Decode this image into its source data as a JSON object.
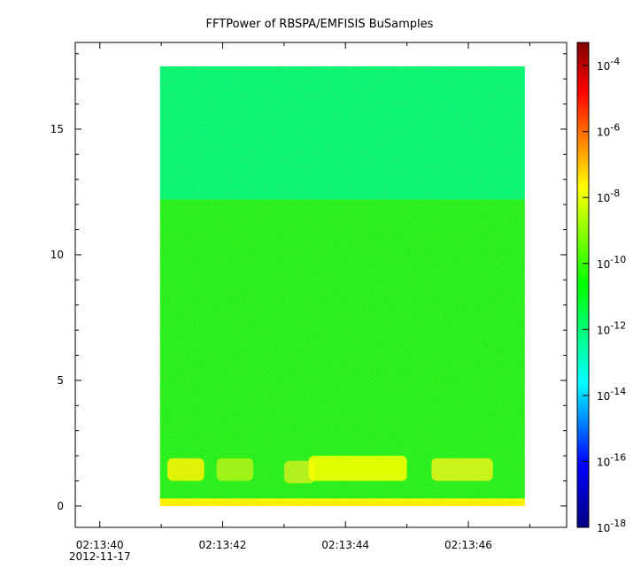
{
  "chart_data": {
    "type": "heatmap",
    "title": "FFTPower of RBSPA/EMFISIS  BuSamples",
    "xlabel": "",
    "ylabel": "",
    "x": {
      "tick_labels": [
        "02:13:40",
        "02:13:42",
        "02:13:44",
        "02:13:46"
      ],
      "tick_values_s": [
        0,
        2,
        4,
        6
      ],
      "date_label": "2012-11-17",
      "range_s": [
        -0.4,
        7.6
      ],
      "data_span_s": [
        0.98,
        6.92
      ]
    },
    "y": {
      "tick_labels": [
        "0",
        "5",
        "10",
        "15"
      ],
      "tick_values": [
        0,
        5,
        10,
        15
      ],
      "range": [
        -0.85,
        18.45
      ],
      "data_span": [
        0,
        17.5
      ]
    },
    "colorbar": {
      "scale": "log",
      "colormap": "rainbow",
      "range_exponent": [
        -18,
        -3.3
      ],
      "tick_labels": [
        "-18",
        "-16",
        "-14",
        "-12",
        "-10",
        "-8",
        "-6",
        "-4"
      ],
      "tick_exponents": [
        -18,
        -16,
        -14,
        -12,
        -10,
        -8,
        -6,
        -4
      ],
      "tick_base": "10",
      "colors": [
        "#000080",
        "#0000ff",
        "#00ffff",
        "#00ff00",
        "#ffff00",
        "#ff0000",
        "#800000"
      ]
    },
    "spectrum": {
      "upper_band": {
        "y_from": 12.2,
        "y_to": 17.5,
        "log_power": -12.4,
        "color": "#00f37a"
      },
      "middle_band": {
        "y_from": 0.2,
        "y_to": 12.2,
        "log_power": -10.6,
        "color": "#20ee20"
      },
      "baseline": {
        "y_from": 0,
        "y_to": 0.3,
        "log_power": -8.6,
        "color": "#ffee00"
      },
      "bursts": [
        {
          "t_from": 1.1,
          "t_to": 1.7,
          "y_from": 1.0,
          "y_to": 1.9,
          "color": "#fff200"
        },
        {
          "t_from": 1.9,
          "t_to": 2.5,
          "y_from": 1.0,
          "y_to": 1.9,
          "color": "#aef21a"
        },
        {
          "t_from": 3.0,
          "t_to": 3.5,
          "y_from": 0.9,
          "y_to": 1.8,
          "color": "#c8f020"
        },
        {
          "t_from": 3.4,
          "t_to": 5.0,
          "y_from": 1.0,
          "y_to": 2.0,
          "color": "#ffff00"
        },
        {
          "t_from": 5.4,
          "t_to": 6.4,
          "y_from": 1.0,
          "y_to": 1.9,
          "color": "#e6f21a"
        }
      ]
    },
    "grid": false,
    "legend": "colorbar-right"
  }
}
